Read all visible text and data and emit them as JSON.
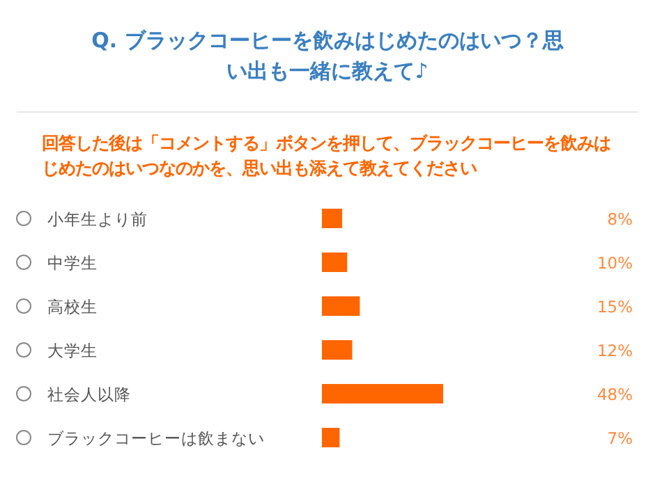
{
  "chart_data": {
    "type": "bar",
    "orientation": "horizontal",
    "title": "Q.  ブラックコーヒーを飲みはじめたのはいつ？思い出も一緒に教えて♪",
    "subtitle": "回答した後は「コメントする」ボタンを押して、ブラックコーヒーを飲みはじめたのはいつなのかを、思い出も添えて教えてください",
    "categories": [
      "小年生より前",
      "中学生",
      "高校生",
      "大学生",
      "社会人以降",
      "ブラックコーヒーは飲まない"
    ],
    "values": [
      8,
      10,
      15,
      12,
      48,
      7
    ],
    "value_labels": [
      "8%",
      "10%",
      "15%",
      "12%",
      "48%",
      "7%"
    ],
    "color": "#ff6600"
  }
}
